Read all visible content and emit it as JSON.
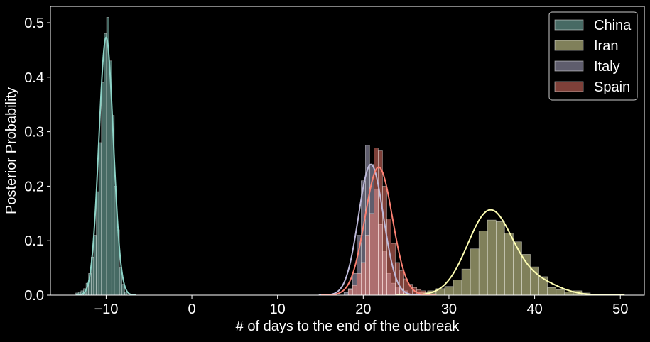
{
  "chart_data": {
    "type": "histogram",
    "title": "",
    "xlabel": "# of days to the end of the outbreak",
    "ylabel": "Posterior Probability",
    "xlim": [
      -16.5,
      52.8
    ],
    "ylim": [
      0,
      0.53
    ],
    "x_ticks": [
      -10,
      0,
      10,
      20,
      30,
      40,
      50
    ],
    "y_ticks": [
      0.0,
      0.1,
      0.2,
      0.3,
      0.4,
      0.5
    ],
    "x_tick_labels": [
      "−10",
      "0",
      "10",
      "20",
      "30",
      "40",
      "50"
    ],
    "y_tick_labels": [
      "0.0",
      "0.1",
      "0.2",
      "0.3",
      "0.4",
      "0.5"
    ],
    "grid": false,
    "legend_position": "top-right",
    "series": [
      {
        "name": "China",
        "color": "#8dd3c7",
        "bin_width": 0.3,
        "bins": [
          {
            "x": -13.4,
            "y": 0.004
          },
          {
            "x": -13.1,
            "y": 0.006
          },
          {
            "x": -12.8,
            "y": 0.008
          },
          {
            "x": -12.5,
            "y": 0.012
          },
          {
            "x": -12.2,
            "y": 0.022
          },
          {
            "x": -11.9,
            "y": 0.04
          },
          {
            "x": -11.6,
            "y": 0.07
          },
          {
            "x": -11.3,
            "y": 0.11
          },
          {
            "x": -11.0,
            "y": 0.19
          },
          {
            "x": -10.7,
            "y": 0.28
          },
          {
            "x": -10.4,
            "y": 0.39
          },
          {
            "x": -10.1,
            "y": 0.48
          },
          {
            "x": -9.8,
            "y": 0.51
          },
          {
            "x": -9.5,
            "y": 0.43
          },
          {
            "x": -9.2,
            "y": 0.33
          },
          {
            "x": -8.9,
            "y": 0.2
          },
          {
            "x": -8.6,
            "y": 0.12
          },
          {
            "x": -8.3,
            "y": 0.05
          },
          {
            "x": -8.0,
            "y": 0.02
          },
          {
            "x": -7.7,
            "y": 0.006
          }
        ],
        "kde": {
          "type": "gaussian",
          "mean": -10.0,
          "sd": 0.84,
          "peak": 0.473
        }
      },
      {
        "name": "Iran",
        "color": "#ffffb3",
        "bin_width": 1.0,
        "bins": [
          {
            "x": 27,
            "y": 0.005
          },
          {
            "x": 28,
            "y": 0.008
          },
          {
            "x": 29,
            "y": 0.012
          },
          {
            "x": 30,
            "y": 0.016
          },
          {
            "x": 31,
            "y": 0.028
          },
          {
            "x": 32,
            "y": 0.048
          },
          {
            "x": 33,
            "y": 0.085
          },
          {
            "x": 34,
            "y": 0.118
          },
          {
            "x": 35,
            "y": 0.138
          },
          {
            "x": 36,
            "y": 0.135
          },
          {
            "x": 37,
            "y": 0.114
          },
          {
            "x": 38,
            "y": 0.098
          },
          {
            "x": 39,
            "y": 0.075
          },
          {
            "x": 40,
            "y": 0.052
          },
          {
            "x": 41,
            "y": 0.034
          },
          {
            "x": 42,
            "y": 0.014
          },
          {
            "x": 43,
            "y": 0.01
          },
          {
            "x": 44,
            "y": 0.006
          },
          {
            "x": 45,
            "y": 0.008
          },
          {
            "x": 46,
            "y": 0.004
          }
        ],
        "kde": {
          "type": "gaussian",
          "mean": 34.8,
          "sd": 2.6,
          "peak": 0.155,
          "tail_mean": 40.5,
          "tail_sd": 2.5,
          "tail_peak": 0.022
        }
      },
      {
        "name": "Italy",
        "color": "#bebada",
        "bin_width": 0.5,
        "bins": [
          {
            "x": 18.0,
            "y": 0.005
          },
          {
            "x": 18.5,
            "y": 0.012
          },
          {
            "x": 19.0,
            "y": 0.04
          },
          {
            "x": 19.5,
            "y": 0.11
          },
          {
            "x": 20.0,
            "y": 0.21
          },
          {
            "x": 20.5,
            "y": 0.275
          },
          {
            "x": 21.0,
            "y": 0.24
          },
          {
            "x": 21.5,
            "y": 0.195
          },
          {
            "x": 22.0,
            "y": 0.13
          },
          {
            "x": 22.5,
            "y": 0.08
          },
          {
            "x": 23.0,
            "y": 0.04
          },
          {
            "x": 23.5,
            "y": 0.022
          },
          {
            "x": 24.0,
            "y": 0.015
          },
          {
            "x": 24.5,
            "y": 0.012
          },
          {
            "x": 25.0,
            "y": 0.008
          }
        ],
        "kde": {
          "type": "gaussian",
          "mean": 20.9,
          "sd": 1.45,
          "peak": 0.24
        }
      },
      {
        "name": "Spain",
        "color": "#fb8072",
        "bin_width": 0.5,
        "bins": [
          {
            "x": 18.5,
            "y": 0.01
          },
          {
            "x": 19.0,
            "y": 0.018
          },
          {
            "x": 19.5,
            "y": 0.04
          },
          {
            "x": 20.0,
            "y": 0.06
          },
          {
            "x": 20.5,
            "y": 0.11
          },
          {
            "x": 21.0,
            "y": 0.15
          },
          {
            "x": 21.5,
            "y": 0.27
          },
          {
            "x": 22.0,
            "y": 0.265
          },
          {
            "x": 22.5,
            "y": 0.2
          },
          {
            "x": 23.0,
            "y": 0.14
          },
          {
            "x": 23.5,
            "y": 0.095
          },
          {
            "x": 24.0,
            "y": 0.06
          },
          {
            "x": 24.5,
            "y": 0.045
          },
          {
            "x": 25.0,
            "y": 0.03
          },
          {
            "x": 25.5,
            "y": 0.02
          },
          {
            "x": 26.0,
            "y": 0.014
          },
          {
            "x": 26.5,
            "y": 0.01
          },
          {
            "x": 27.0,
            "y": 0.008
          }
        ],
        "kde": {
          "type": "gaussian",
          "mean": 21.8,
          "sd": 1.6,
          "peak": 0.235
        }
      }
    ]
  }
}
